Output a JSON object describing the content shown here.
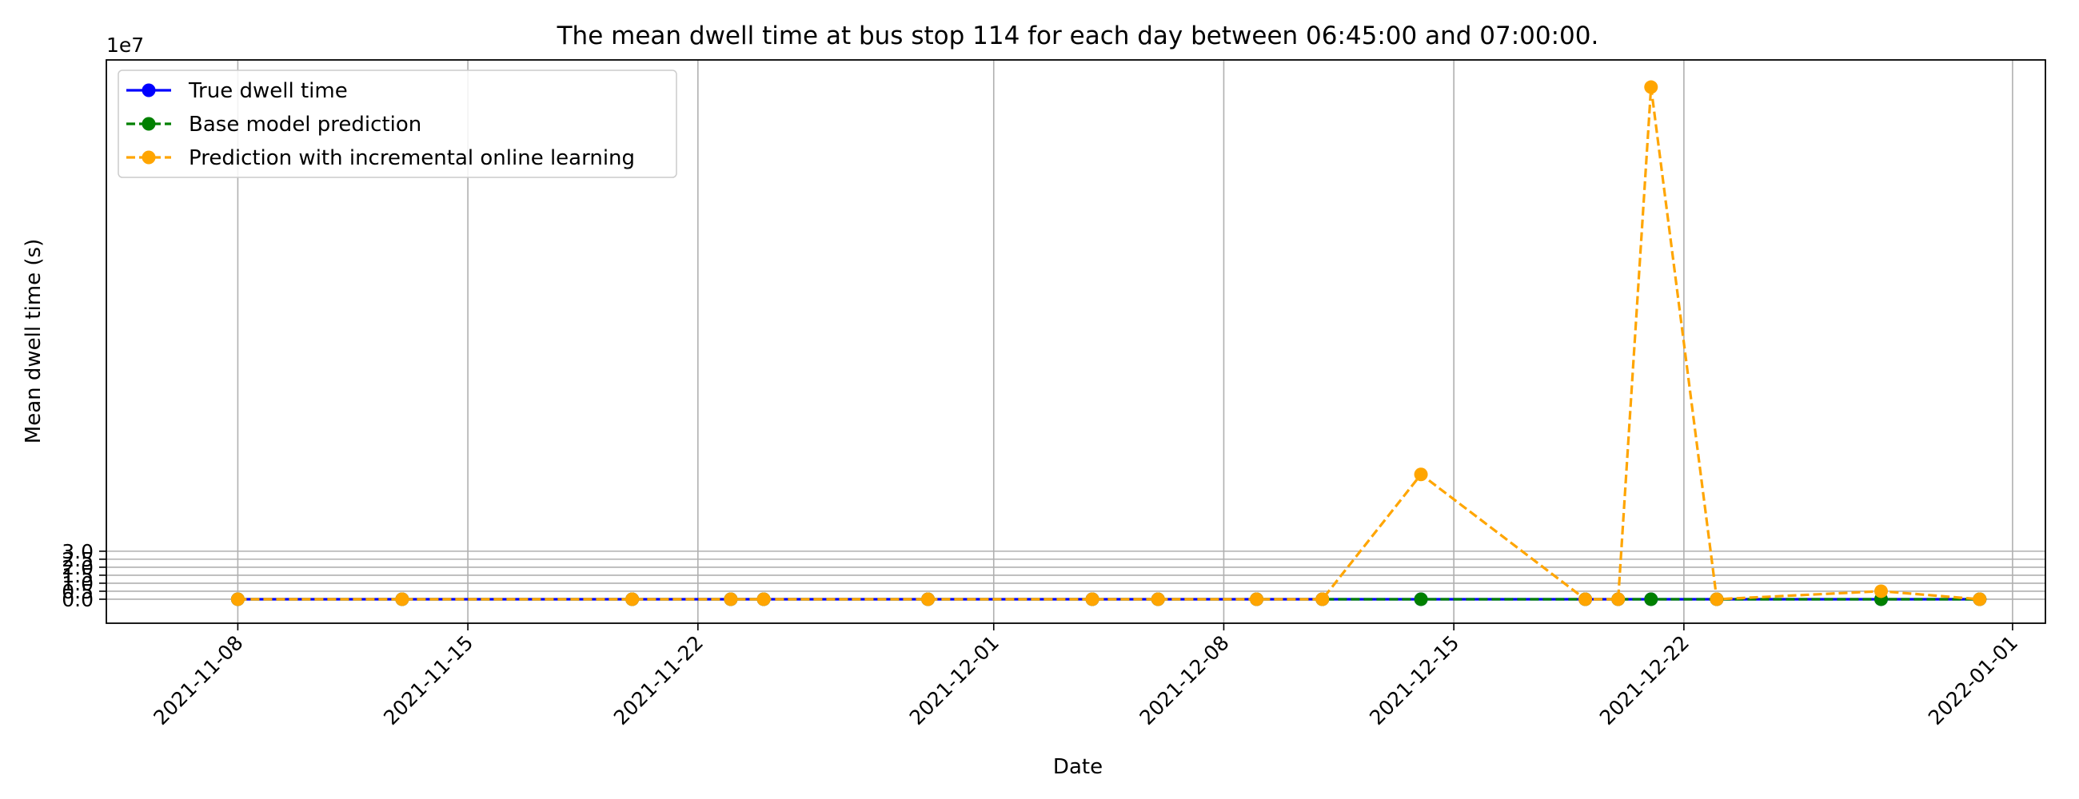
{
  "chart_data": {
    "type": "line",
    "title": "The mean dwell time at bus stop 114 for each day between 06:45:00 and 07:00:00.",
    "xlabel": "Date",
    "ylabel": "Mean dwell time (s)",
    "y_scale_label": "1e7",
    "y_multiplier": 10000000,
    "xlim": [
      "2021-11-04",
      "2022-01-02"
    ],
    "ylim": [
      -1.5,
      33.7
    ],
    "x_ticks": [
      "2021-11-08",
      "2021-11-15",
      "2021-11-22",
      "2021-12-01",
      "2021-12-08",
      "2021-12-15",
      "2021-12-22",
      "2022-01-01"
    ],
    "y_ticks": [
      "0.0",
      "0.5",
      "1.0",
      "1.5",
      "2.0",
      "2.5",
      "3.0"
    ],
    "grid": true,
    "legend_position": "upper-left",
    "x": [
      "2021-11-08",
      "2021-11-13",
      "2021-11-20",
      "2021-11-23",
      "2021-11-24",
      "2021-11-29",
      "2021-12-04",
      "2021-12-06",
      "2021-12-09",
      "2021-12-11",
      "2021-12-14",
      "2021-12-19",
      "2021-12-20",
      "2021-12-21",
      "2021-12-23",
      "2021-12-28",
      "2021-12-31"
    ],
    "series": [
      {
        "name": "True dwell time",
        "color": "#0000ff",
        "line_style": "solid",
        "values": [
          0,
          0,
          0,
          0,
          0,
          0,
          0,
          0,
          0,
          0,
          0,
          0,
          0,
          0,
          0,
          0,
          0
        ]
      },
      {
        "name": "Base model prediction",
        "color": "#008000",
        "line_style": "dashed",
        "values": [
          0,
          0,
          0,
          0,
          0,
          0,
          0,
          0,
          0,
          0,
          0,
          0,
          0,
          0,
          0,
          0,
          0
        ]
      },
      {
        "name": "Prediction with incremental online learning",
        "color": "#ffa500",
        "line_style": "dashed",
        "values": [
          0,
          0,
          0,
          0,
          0,
          0,
          0,
          0,
          0,
          0,
          7.8,
          0,
          0,
          32.0,
          0,
          0.5,
          0
        ]
      }
    ]
  }
}
